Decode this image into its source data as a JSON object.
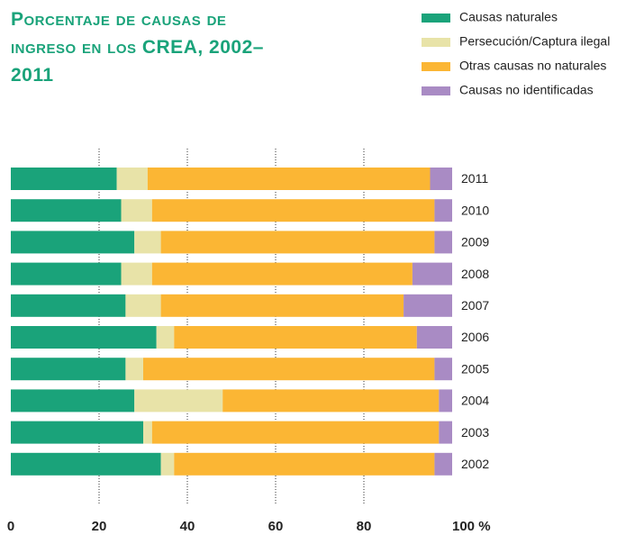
{
  "chart_data": {
    "type": "stacked-barh",
    "title": "Porcentaje de causas de ingreso en los CREA, 2002–2011",
    "categories": [
      "2011",
      "2010",
      "2009",
      "2008",
      "2007",
      "2006",
      "2005",
      "2004",
      "2003",
      "2002"
    ],
    "series": [
      {
        "name": "Causas naturales",
        "color": "#1aa37a",
        "values": [
          24,
          25,
          28,
          25,
          26,
          33,
          26,
          28,
          30,
          34
        ]
      },
      {
        "name": "Persecución/Captura ilegal",
        "color": "#e8e3a8",
        "values": [
          7,
          7,
          6,
          7,
          8,
          4,
          4,
          20,
          2,
          3
        ]
      },
      {
        "name": "Otras causas no naturales",
        "color": "#fbb634",
        "values": [
          64,
          64,
          62,
          59,
          55,
          55,
          66,
          49,
          65,
          59
        ]
      },
      {
        "name": "Causas no identificadas",
        "color": "#a98bc4",
        "values": [
          5,
          4,
          4,
          9,
          11,
          8,
          4,
          3,
          3,
          4
        ]
      }
    ],
    "xlim": [
      0,
      100
    ],
    "xticks": [
      0,
      20,
      40,
      60,
      80,
      {
        "value": 100,
        "label": "100 %"
      }
    ],
    "grid": true,
    "legend": "upper right"
  }
}
